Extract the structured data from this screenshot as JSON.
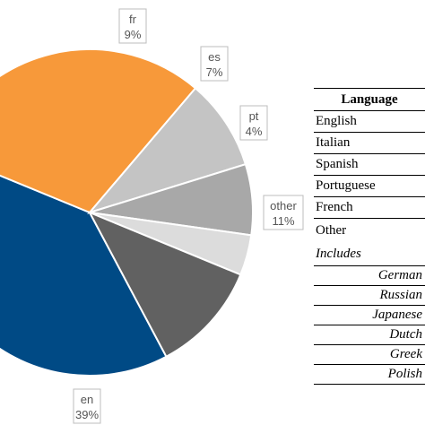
{
  "chart_data": {
    "type": "pie",
    "slices": [
      {
        "label": "en",
        "percent_label": "39%",
        "value": 39,
        "color": "#004a85"
      },
      {
        "label": "",
        "percent_label": "",
        "value": 30,
        "color": "#f7993a"
      },
      {
        "label": "fr",
        "percent_label": "9%",
        "value": 9,
        "color": "#c4c4c4"
      },
      {
        "label": "es",
        "percent_label": "7%",
        "value": 7,
        "color": "#a8a8a8"
      },
      {
        "label": "pt",
        "percent_label": "4%",
        "value": 4,
        "color": "#dcdcdc"
      },
      {
        "label": "other",
        "percent_label": "11%",
        "value": 11,
        "color": "#616161"
      }
    ]
  },
  "legend": {
    "header": "Language",
    "rows": [
      "English",
      "Italian",
      "Spanish",
      "Portuguese",
      "French",
      "Other"
    ],
    "includes_label": "Includes",
    "includes": [
      "German",
      "Russian",
      "Japanese",
      "Dutch",
      "Greek",
      "Polish"
    ]
  }
}
